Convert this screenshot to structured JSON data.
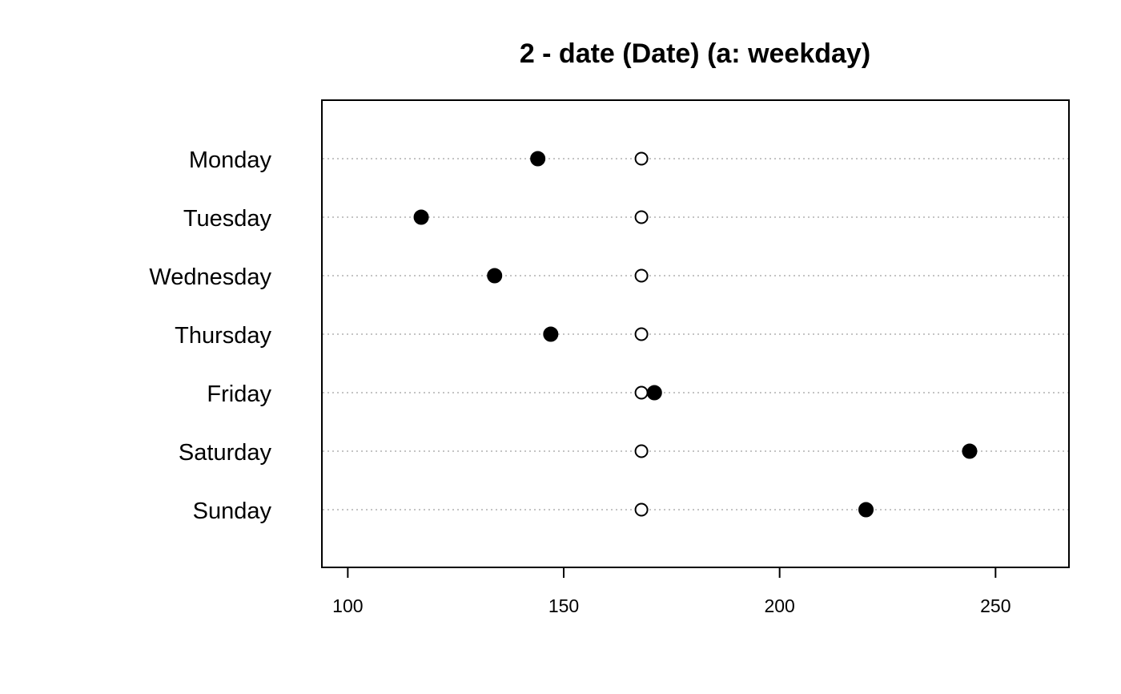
{
  "chart_data": {
    "type": "scatter",
    "title": "2 - date (Date) (a: weekday)",
    "xlabel": "",
    "ylabel": "",
    "categories": [
      "Monday",
      "Tuesday",
      "Wednesday",
      "Thursday",
      "Friday",
      "Saturday",
      "Sunday"
    ],
    "series": [
      {
        "marker": "filled-circle",
        "color": "#000000",
        "values": [
          144,
          117,
          134,
          147,
          171,
          244,
          220
        ]
      },
      {
        "marker": "open-circle",
        "color": "#000000",
        "values": [
          168,
          168,
          168,
          168,
          168,
          168,
          168
        ]
      }
    ],
    "xlim": [
      94,
      267
    ],
    "xticks": [
      100,
      150,
      200,
      250
    ],
    "xtick_labels": [
      "100",
      "150",
      "200",
      "250"
    ],
    "guide_lines": "dotted gray",
    "guide_color": "#b0b0b0",
    "legend": "none"
  }
}
